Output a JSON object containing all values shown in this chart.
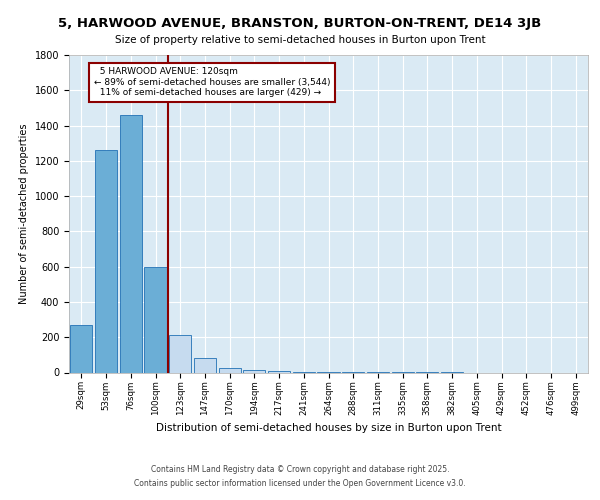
{
  "title": "5, HARWOOD AVENUE, BRANSTON, BURTON-ON-TRENT, DE14 3JB",
  "subtitle": "Size of property relative to semi-detached houses in Burton upon Trent",
  "xlabel": "Distribution of semi-detached houses by size in Burton upon Trent",
  "ylabel": "Number of semi-detached properties",
  "footer_line1": "Contains HM Land Registry data © Crown copyright and database right 2025.",
  "footer_line2": "Contains public sector information licensed under the Open Government Licence v3.0.",
  "categories": [
    "29sqm",
    "53sqm",
    "76sqm",
    "100sqm",
    "123sqm",
    "147sqm",
    "170sqm",
    "194sqm",
    "217sqm",
    "241sqm",
    "264sqm",
    "288sqm",
    "311sqm",
    "335sqm",
    "358sqm",
    "382sqm",
    "405sqm",
    "429sqm",
    "452sqm",
    "476sqm",
    "499sqm"
  ],
  "values": [
    270,
    1260,
    1460,
    600,
    210,
    80,
    25,
    12,
    6,
    4,
    3,
    2,
    2,
    1,
    1,
    1,
    0,
    0,
    0,
    0,
    0
  ],
  "property_bin_index": 4,
  "property_size": "120sqm",
  "property_name": "5 HARWOOD AVENUE",
  "pct_smaller": 89,
  "count_smaller": 3544,
  "pct_larger": 11,
  "count_larger": 429,
  "bar_color_left": "#6baed6",
  "bar_color_right": "#c6dbef",
  "bar_edge_color": "#2171b5",
  "vline_color": "#8b0000",
  "annotation_box_color": "#8b0000",
  "background_color": "#daeaf4",
  "ylim": [
    0,
    1800
  ],
  "yticks": [
    0,
    200,
    400,
    600,
    800,
    1000,
    1200,
    1400,
    1600,
    1800
  ]
}
